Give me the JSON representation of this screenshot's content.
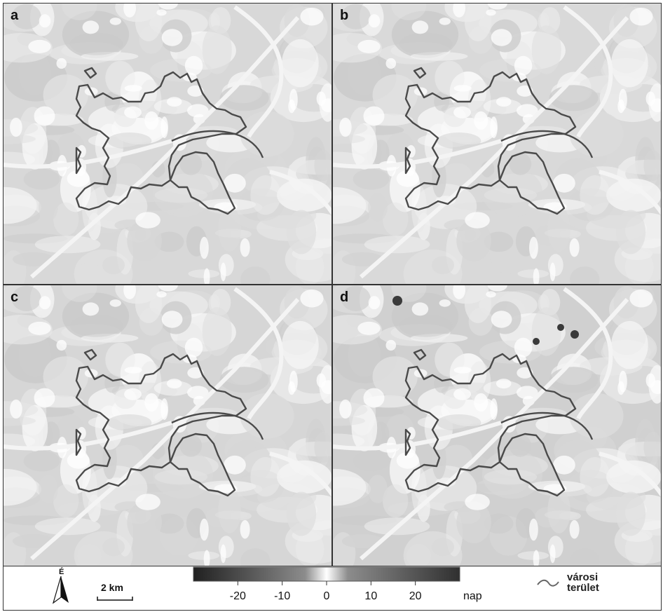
{
  "panels": [
    {
      "letter": "a",
      "tone": "#d8d8d8"
    },
    {
      "letter": "b",
      "tone": "#d9d9d9"
    },
    {
      "letter": "c",
      "tone": "#d6d6d6"
    },
    {
      "letter": "d",
      "tone": "#d0d0d0"
    }
  ],
  "legend": {
    "north_letter": "É",
    "scale_bar": "2 km",
    "colorbar": {
      "ticks": [
        "-20",
        "-10",
        "0",
        "10",
        "20"
      ],
      "tick_values": [
        -20,
        -10,
        0,
        10,
        20
      ],
      "range": [
        -30,
        30
      ],
      "unit": "nap",
      "colors": [
        "#202020",
        "#8c8c8c",
        "#ffffff",
        "#8c8c8c",
        "#303030"
      ]
    },
    "boundary_label_line1": "városi",
    "boundary_label_line2": "terület"
  },
  "icons": {
    "north_arrow": "north-arrow-icon",
    "boundary_line": "boundary-line-icon"
  }
}
